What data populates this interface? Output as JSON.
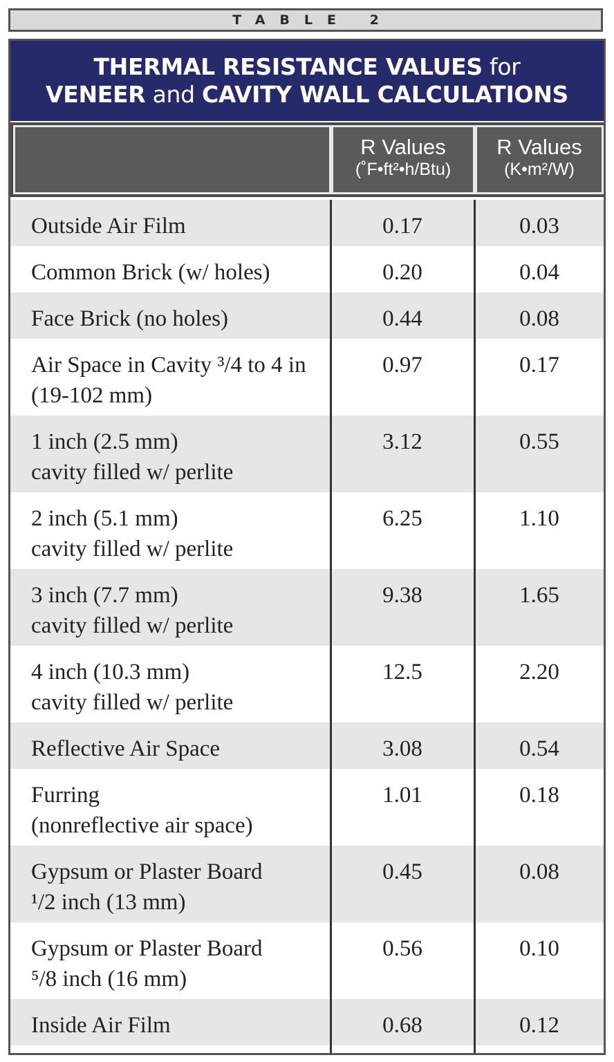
{
  "table_label": "TABLE 2",
  "title": {
    "line1_bold": "THERMAL RESISTANCE VALUES",
    "line1_light": " for",
    "line2_bold_a": "VENEER",
    "line2_light": " and ",
    "line2_bold_b": "CAVITY WALL CALCULATIONS"
  },
  "columns": [
    {
      "label": ""
    },
    {
      "label": "R Values",
      "unit": "(˚F•ft²•h/Btu)"
    },
    {
      "label": "R Values",
      "unit": "(K•m²/W)"
    }
  ],
  "rows": [
    {
      "material": [
        "Outside Air Film"
      ],
      "r_imperial": "0.17",
      "r_si": "0.03"
    },
    {
      "material": [
        "Common Brick (w/ holes)"
      ],
      "r_imperial": "0.20",
      "r_si": "0.04"
    },
    {
      "material": [
        "Face Brick (no holes)"
      ],
      "r_imperial": "0.44",
      "r_si": "0.08"
    },
    {
      "material": [
        "Air Space in Cavity ³/4 to 4 in",
        "(19-102 mm)"
      ],
      "r_imperial": "0.97",
      "r_si": "0.17"
    },
    {
      "material": [
        "1 inch (2.5 mm)",
        "cavity filled w/ perlite"
      ],
      "r_imperial": "3.12",
      "r_si": "0.55"
    },
    {
      "material": [
        "2 inch (5.1 mm)",
        "cavity filled w/ perlite"
      ],
      "r_imperial": "6.25",
      "r_si": "1.10"
    },
    {
      "material": [
        "3 inch (7.7 mm)",
        "cavity filled w/ perlite"
      ],
      "r_imperial": "9.38",
      "r_si": "1.65"
    },
    {
      "material": [
        "4 inch (10.3 mm)",
        "cavity filled w/ perlite"
      ],
      "r_imperial": "12.5",
      "r_si": "2.20"
    },
    {
      "material": [
        "Reflective Air Space"
      ],
      "r_imperial": "3.08",
      "r_si": "0.54"
    },
    {
      "material": [
        "Furring",
        "(nonreflective air space)"
      ],
      "r_imperial": "1.01",
      "r_si": "0.18"
    },
    {
      "material": [
        "Gypsum or Plaster Board",
        "¹/2 inch (13 mm)"
      ],
      "r_imperial": "0.45",
      "r_si": "0.08"
    },
    {
      "material": [
        "Gypsum or Plaster Board",
        "⁵/8 inch (16 mm)"
      ],
      "r_imperial": "0.56",
      "r_si": "0.10"
    },
    {
      "material": [
        "Inside Air Film"
      ],
      "r_imperial": "0.68",
      "r_si": "0.12"
    }
  ],
  "colors": {
    "title_bg": "#262a6b",
    "header_bg": "#5a5a5a",
    "row_shade": "#e6e6e6",
    "border": "#555555"
  }
}
